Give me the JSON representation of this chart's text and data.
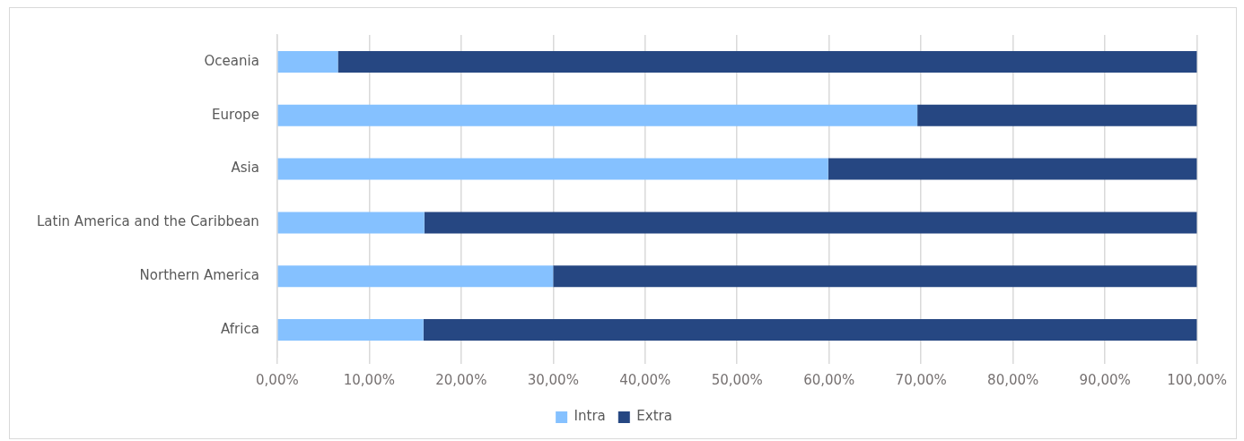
{
  "chart_data": {
    "type": "bar",
    "orientation": "horizontal",
    "stacked": true,
    "categories": [
      "Oceania",
      "Europe",
      "Asia",
      "Latin America and the Caribbean",
      "Northern America",
      "Africa"
    ],
    "series": [
      {
        "name": "Intra",
        "color": "#85c1ff",
        "values": [
          6.6,
          69.6,
          59.9,
          16.0,
          30.0,
          15.9
        ]
      },
      {
        "name": "Extra",
        "color": "#264782",
        "values": [
          93.4,
          30.4,
          40.1,
          84.0,
          70.0,
          84.1
        ]
      }
    ],
    "xlim": [
      0,
      100
    ],
    "xticks": [
      {
        "value": 0,
        "label": "0,00%"
      },
      {
        "value": 10,
        "label": "10,00%"
      },
      {
        "value": 20,
        "label": "20,00%"
      },
      {
        "value": 30,
        "label": "30,00%"
      },
      {
        "value": 40,
        "label": "40,00%"
      },
      {
        "value": 50,
        "label": "50,00%"
      },
      {
        "value": 60,
        "label": "60,00%"
      },
      {
        "value": 70,
        "label": "70,00%"
      },
      {
        "value": 80,
        "label": "80,00%"
      },
      {
        "value": 90,
        "label": "90,00%"
      },
      {
        "value": 100,
        "label": "100,00%"
      }
    ],
    "grid": "x",
    "legend": "bottom"
  }
}
